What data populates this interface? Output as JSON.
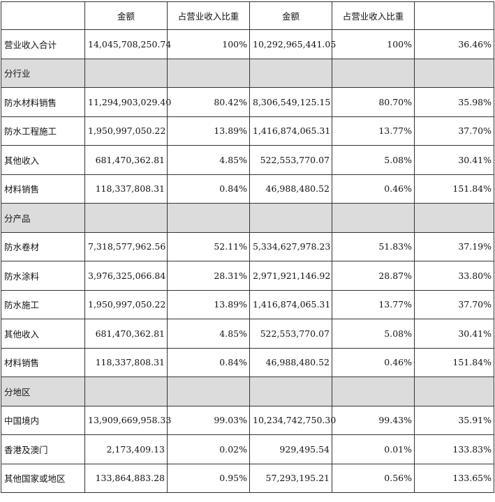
{
  "header": [
    "",
    "金额",
    "占营业收入比重",
    "金额",
    "占营业收入比重",
    ""
  ],
  "total": {
    "label": "营业收入合计",
    "values": [
      "14,045,708,250.74",
      "100%",
      "10,292,965,441.05",
      "100%",
      "36.46%"
    ]
  },
  "sections": [
    {
      "title": "分行业",
      "rows": [
        {
          "label": "防水材料销售",
          "values": [
            "11,294,903,029.40",
            "80.42%",
            "8,306,549,125.15",
            "80.70%",
            "35.98%"
          ]
        },
        {
          "label": "防水工程施工",
          "values": [
            "1,950,997,050.22",
            "13.89%",
            "1,416,874,065.31",
            "13.77%",
            "37.70%"
          ]
        },
        {
          "label": "其他收入",
          "values": [
            "681,470,362.81",
            "4.85%",
            "522,553,770.07",
            "5.08%",
            "30.41%"
          ]
        },
        {
          "label": "材料销售",
          "values": [
            "118,337,808.31",
            "0.84%",
            "46,988,480.52",
            "0.46%",
            "151.84%"
          ]
        }
      ]
    },
    {
      "title": "分产品",
      "rows": [
        {
          "label": "防水卷材",
          "values": [
            "7,318,577,962.56",
            "52.11%",
            "5,334,627,978.23",
            "51.83%",
            "37.19%"
          ]
        },
        {
          "label": "防水涂料",
          "values": [
            "3,976,325,066.84",
            "28.31%",
            "2,971,921,146.92",
            "28.87%",
            "33.80%"
          ]
        },
        {
          "label": "防水施工",
          "values": [
            "1,950,997,050.22",
            "13.89%",
            "1,416,874,065.31",
            "13.77%",
            "37.70%"
          ]
        },
        {
          "label": "其他收入",
          "values": [
            "681,470,362.81",
            "4.85%",
            "522,553,770.07",
            "5.08%",
            "30.41%"
          ]
        },
        {
          "label": "材料销售",
          "values": [
            "118,337,808.31",
            "0.84%",
            "46,988,480.52",
            "0.46%",
            "151.84%"
          ]
        }
      ]
    },
    {
      "title": "分地区",
      "rows": [
        {
          "label": "中国境内",
          "values": [
            "13,909,669,958.33",
            "99.03%",
            "10,234,742,750.30",
            "99.43%",
            "35.91%"
          ]
        },
        {
          "label": "香港及澳门",
          "values": [
            "2,173,409.13",
            "0.02%",
            "929,495.54",
            "0.01%",
            "133.83%"
          ]
        },
        {
          "label": "其他国家或地区",
          "values": [
            "133,864,883.28",
            "0.95%",
            "57,293,195.21",
            "0.56%",
            "133.65%"
          ]
        }
      ]
    }
  ]
}
